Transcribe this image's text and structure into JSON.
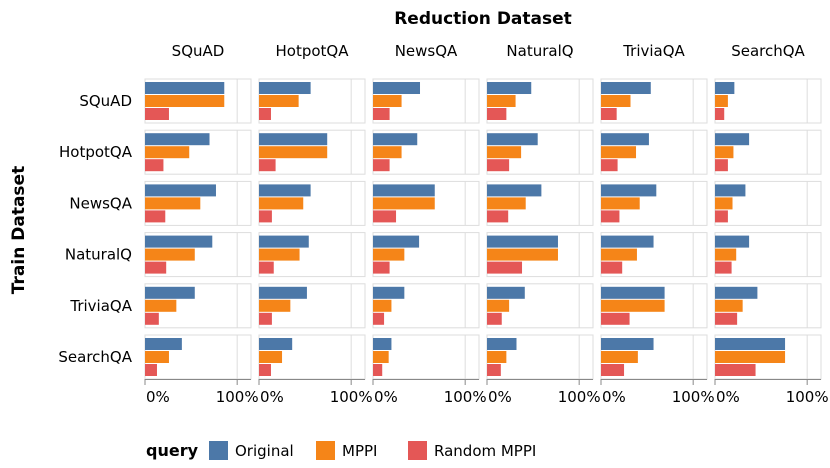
{
  "chart_data": {
    "type": "bar",
    "title": "Reduction Dataset",
    "ylabel": "Train Dataset",
    "columns": [
      "SQuAD",
      "HotpotQA",
      "NewsQA",
      "NaturalQ",
      "TriviaQA",
      "SearchQA"
    ],
    "rows": [
      "SQuAD",
      "HotpotQA",
      "NewsQA",
      "NaturalQ",
      "TriviaQA",
      "SearchQA"
    ],
    "xlim": [
      0,
      115
    ],
    "xticks": [
      {
        "value": 0,
        "label": "0%"
      },
      {
        "value": 100,
        "label": "100%"
      }
    ],
    "series": [
      {
        "name": "Original",
        "color": "#4c78a8"
      },
      {
        "name": "MPPI",
        "color": "#f58518"
      },
      {
        "name": "Random MPPI",
        "color": "#e45756"
      }
    ],
    "legend": {
      "title": "query",
      "position": "bottom-left"
    },
    "values": [
      [
        [
          86,
          86,
          26
        ],
        [
          56,
          43,
          13
        ],
        [
          51,
          31,
          18
        ],
        [
          48,
          31,
          21
        ],
        [
          54,
          32,
          17
        ],
        [
          21,
          14,
          10
        ]
      ],
      [
        [
          70,
          48,
          20
        ],
        [
          74,
          74,
          18
        ],
        [
          48,
          31,
          18
        ],
        [
          55,
          37,
          24
        ],
        [
          52,
          38,
          18
        ],
        [
          37,
          20,
          14
        ]
      ],
      [
        [
          77,
          60,
          22
        ],
        [
          56,
          48,
          14
        ],
        [
          67,
          67,
          25
        ],
        [
          59,
          42,
          23
        ],
        [
          60,
          42,
          20
        ],
        [
          33,
          19,
          14
        ]
      ],
      [
        [
          73,
          54,
          23
        ],
        [
          54,
          44,
          16
        ],
        [
          50,
          34,
          18
        ],
        [
          77,
          77,
          38
        ],
        [
          57,
          39,
          23
        ],
        [
          37,
          23,
          18
        ]
      ],
      [
        [
          54,
          34,
          15
        ],
        [
          52,
          34,
          14
        ],
        [
          34,
          20,
          12
        ],
        [
          41,
          24,
          16
        ],
        [
          69,
          69,
          31
        ],
        [
          46,
          30,
          24
        ]
      ],
      [
        [
          40,
          26,
          13
        ],
        [
          36,
          25,
          13
        ],
        [
          20,
          17,
          10
        ],
        [
          32,
          21,
          15
        ],
        [
          57,
          40,
          25
        ],
        [
          76,
          76,
          44
        ]
      ]
    ]
  }
}
